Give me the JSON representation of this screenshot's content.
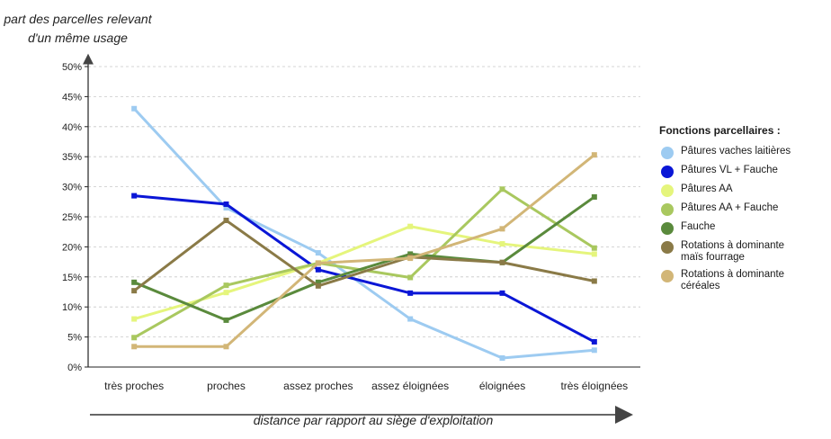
{
  "chart_data": {
    "type": "line",
    "title": "",
    "ylabel_lines": [
      "part des parcelles relevant",
      "d'un même usage"
    ],
    "xlabel": "distance par rapport au siège d'exploitation",
    "ylim": [
      0,
      50
    ],
    "ytick_values": [
      0,
      5,
      10,
      15,
      20,
      25,
      30,
      35,
      40,
      45,
      50
    ],
    "ytick_labels": [
      "0%",
      "5%",
      "10%",
      "15%",
      "20%",
      "25%",
      "30%",
      "35%",
      "40%",
      "45%",
      "50%"
    ],
    "grid": true,
    "categories": [
      "très proches",
      "proches",
      "assez proches",
      "assez éloignées",
      "éloignées",
      "très éloignées"
    ],
    "legend_title": "Fonctions parcellaires :",
    "legend_position": "right",
    "series": [
      {
        "name": "Pâtures vaches laitières",
        "color": "#9dcbf1",
        "values": [
          43,
          26.5,
          19,
          8,
          1.5,
          2.8
        ]
      },
      {
        "name": "Pâtures VL + Fauche",
        "color": "#0a16d6",
        "values": [
          28.5,
          27.1,
          16.2,
          12.3,
          12.3,
          4.2
        ]
      },
      {
        "name": "Pâtures AA",
        "color": "#e5f57c",
        "values": [
          8,
          12.4,
          17.3,
          23.4,
          20.5,
          18.8
        ]
      },
      {
        "name": "Pâtures AA + Fauche",
        "color": "#a9c85f",
        "values": [
          4.9,
          13.6,
          17.3,
          14.9,
          29.6,
          19.8
        ]
      },
      {
        "name": "Fauche",
        "color": "#5a8a3c",
        "values": [
          14.1,
          7.8,
          14.1,
          18.8,
          17.4,
          28.3
        ]
      },
      {
        "name": "Rotations à dominante\n maïs fourrage",
        "color": "#8a7a47",
        "values": [
          12.7,
          24.4,
          13.5,
          18.3,
          17.4,
          14.3
        ]
      },
      {
        "name": "Rotations à dominante\n céréales",
        "color": "#d2b677",
        "values": [
          3.4,
          3.4,
          17.3,
          18.1,
          23,
          35.3
        ]
      }
    ]
  }
}
